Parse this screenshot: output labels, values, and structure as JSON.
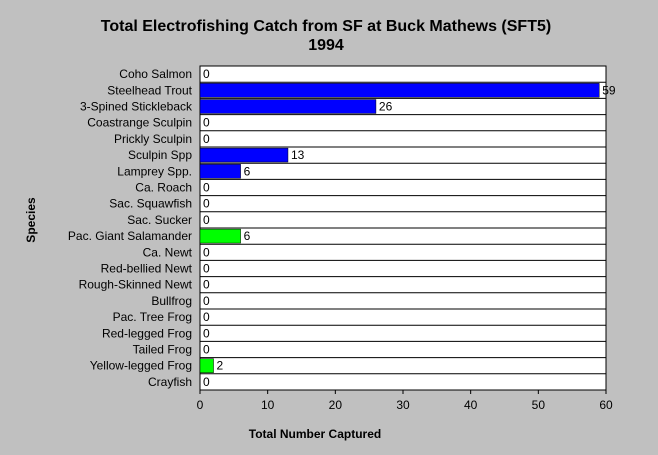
{
  "chart_data": {
    "type": "bar",
    "orientation": "horizontal",
    "title": "Total Electrofishing Catch from SF at Buck Mathews (SFT5)",
    "subtitle": "1994",
    "xlabel": "Total Number Captured",
    "ylabel": "Species",
    "xlim": [
      0,
      60
    ],
    "xticks": [
      0,
      10,
      20,
      30,
      40,
      50,
      60
    ],
    "grid": "horizontal-lines",
    "legend": "none",
    "colors": {
      "fish": "#0000ff",
      "amphibian": "#00ff00",
      "plot_bg": "#ffffff",
      "page_bg": "#c0c0c0"
    },
    "categories": [
      "Coho Salmon",
      "Steelhead Trout",
      "3-Spined Stickleback",
      "Coastrange Sculpin",
      "Prickly Sculpin",
      "Sculpin Spp",
      "Lamprey Spp.",
      "Ca. Roach",
      "Sac. Squawfish",
      "Sac. Sucker",
      "Pac. Giant Salamander",
      "Ca. Newt",
      "Red-bellied Newt",
      "Rough-Skinned Newt",
      "Bullfrog",
      "Pac. Tree Frog",
      "Red-legged Frog",
      "Tailed Frog",
      "Yellow-legged Frog",
      "Crayfish"
    ],
    "values": [
      0,
      59,
      26,
      0,
      0,
      13,
      6,
      0,
      0,
      0,
      6,
      0,
      0,
      0,
      0,
      0,
      0,
      0,
      2,
      0
    ],
    "groups": [
      "fish",
      "fish",
      "fish",
      "fish",
      "fish",
      "fish",
      "fish",
      "fish",
      "fish",
      "fish",
      "amphibian",
      "amphibian",
      "amphibian",
      "amphibian",
      "amphibian",
      "amphibian",
      "amphibian",
      "amphibian",
      "amphibian",
      "fish"
    ]
  }
}
